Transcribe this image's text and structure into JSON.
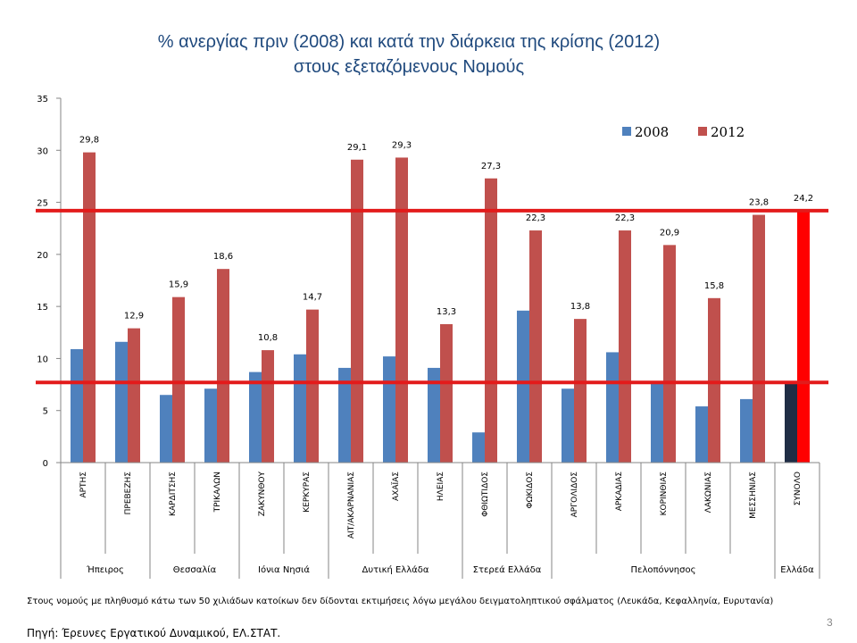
{
  "title_line1": "% ανεργίας πριν (2008) και κατά την διάρκεια της κρίσης (2012)",
  "title_line2": "στους εξεταζόμενους Νομούς",
  "note": "Στους νομούς με πληθυσμό κάτω των 50 χιλιάδων κατοίκων δεν δίδονται εκτιμήσεις λόγω μεγάλου δειγματοληπτικού σφάλματος (Λευκάδα, Κεφαλληνία, Ευρυτανία)",
  "source": "Πηγή: Έρευνες Εργατικού Δυναμικού, ΕΛ.ΣΤΑΤ.",
  "page_number": "3",
  "colors": {
    "s2008": "#4F81BD",
    "s2012": "#C0504D",
    "total2008": "#1F2D45",
    "total2012": "#FF0000",
    "refline": "#E31B1B"
  },
  "chart_data": {
    "type": "bar",
    "categories": [
      "ΑΡΤΗΣ",
      "ΠΡΕΒΕΖΗΣ",
      "ΚΑΡΔΙΤΣΗΣ",
      "ΤΡΙΚΑΛΩΝ",
      "ΖΑΚΥΝΘΟΥ",
      "ΚΕΡΚΥΡΑΣ",
      "ΑΙΤ/ΑΚΑΡΝΑΝΙΑΣ",
      "ΑΧΑΪΑΣ",
      "ΗΛΕΙΑΣ",
      "ΦΘΙΩΤΙΔΟΣ",
      "ΦΩΚΙΔΟΣ",
      "ΑΡΓΟΛΙΔΟΣ",
      "ΑΡΚΑΔΙΑΣ",
      "ΚΟΡΙΝΘΙΑΣ",
      "ΛΑΚΩΝΙΑΣ",
      "ΜΕΣΣΗΝΙΑΣ",
      "ΣΥΝΟΛΟ"
    ],
    "groups": [
      {
        "name": "Ήπειρος",
        "span": 2
      },
      {
        "name": "Θεσσαλία",
        "span": 2
      },
      {
        "name": "Ιόνια Νησιά",
        "span": 2
      },
      {
        "name": "Δυτική Ελλάδα",
        "span": 3
      },
      {
        "name": "Στερεά Ελλάδα",
        "span": 2
      },
      {
        "name": "Πελοπόννησος",
        "span": 5
      },
      {
        "name": "Ελλάδα",
        "span": 1
      }
    ],
    "series": [
      {
        "name": "2008",
        "values": [
          10.9,
          11.6,
          6.5,
          7.1,
          8.7,
          10.4,
          9.1,
          10.2,
          9.1,
          2.9,
          14.6,
          7.1,
          10.6,
          7.8,
          5.4,
          6.1,
          7.7
        ]
      },
      {
        "name": "2012",
        "values": [
          29.8,
          12.9,
          15.9,
          18.6,
          10.8,
          14.7,
          29.1,
          29.3,
          13.3,
          27.3,
          22.3,
          13.8,
          22.3,
          20.9,
          15.8,
          23.8,
          24.2
        ]
      }
    ],
    "value_labels_2012": [
      "29,8",
      "12,9",
      "15,9",
      "18,6",
      "10,8",
      "14,7",
      "29,1",
      "29,3",
      "13,3",
      "27,3",
      "22,3",
      "13,8",
      "22,3",
      "20,9",
      "15,8",
      "23,8",
      "24,2"
    ],
    "reference_lines": [
      24.2,
      7.7
    ],
    "ylim": [
      0,
      35
    ],
    "yticks": [
      "0",
      "5",
      "10",
      "15",
      "20",
      "25",
      "30",
      "35"
    ],
    "legend": [
      "2008",
      "2012"
    ],
    "legend_position": "top-right",
    "grid": false
  }
}
